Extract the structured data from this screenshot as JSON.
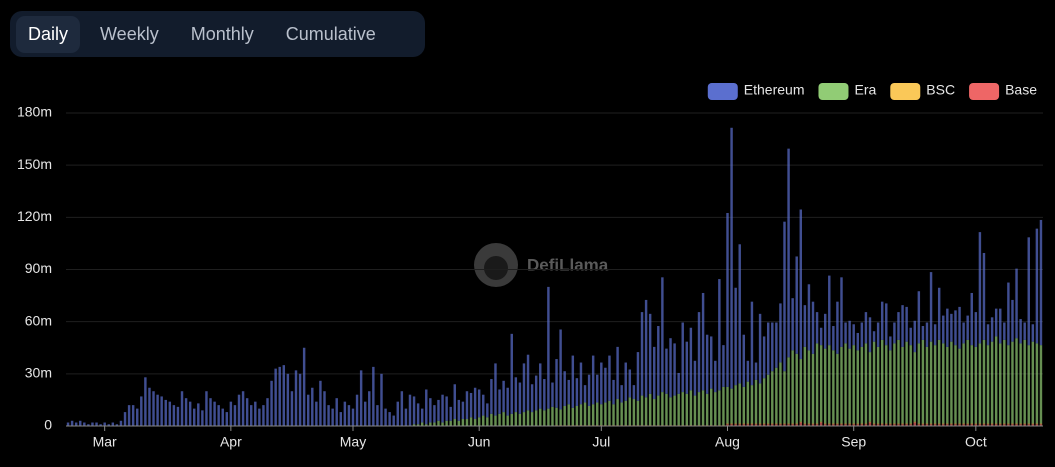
{
  "tabs": [
    "Daily",
    "Weekly",
    "Monthly",
    "Cumulative"
  ],
  "chart_data": {
    "type": "bar",
    "stacked": true,
    "watermark": "DefiLlama",
    "legend": "top-right",
    "grid": true,
    "ylim": [
      0,
      180
    ],
    "yticks": [
      0,
      {
        "value": 30,
        "label": "30m"
      },
      {
        "value": 60,
        "label": "60m"
      },
      {
        "value": 90,
        "label": "90m"
      },
      {
        "value": 120,
        "label": "120m"
      },
      {
        "value": 150,
        "label": "150m"
      },
      {
        "value": 180,
        "label": "180m"
      }
    ],
    "categories": [
      null,
      null,
      null,
      null,
      null,
      null,
      null,
      null,
      null,
      "Mar",
      null,
      null,
      null,
      null,
      null,
      null,
      null,
      null,
      null,
      null,
      null,
      null,
      null,
      null,
      null,
      null,
      null,
      null,
      null,
      null,
      null,
      null,
      null,
      null,
      null,
      null,
      null,
      null,
      null,
      null,
      "Apr",
      null,
      null,
      null,
      null,
      null,
      null,
      null,
      null,
      null,
      null,
      null,
      null,
      null,
      null,
      null,
      null,
      null,
      null,
      null,
      null,
      null,
      null,
      null,
      null,
      null,
      null,
      null,
      null,
      null,
      "May",
      null,
      null,
      null,
      null,
      null,
      null,
      null,
      null,
      null,
      null,
      null,
      null,
      null,
      null,
      null,
      null,
      null,
      null,
      null,
      null,
      null,
      null,
      null,
      null,
      null,
      null,
      null,
      null,
      null,
      null,
      "Jun",
      null,
      null,
      null,
      null,
      null,
      null,
      null,
      null,
      null,
      null,
      null,
      null,
      null,
      null,
      null,
      null,
      null,
      null,
      null,
      null,
      null,
      null,
      null,
      null,
      null,
      null,
      null,
      null,
      null,
      "Jul",
      null,
      null,
      null,
      null,
      null,
      null,
      null,
      null,
      null,
      null,
      null,
      null,
      null,
      null,
      null,
      null,
      null,
      null,
      null,
      null,
      null,
      null,
      null,
      null,
      null,
      null,
      null,
      null,
      null,
      null,
      "Aug",
      null,
      null,
      null,
      null,
      null,
      null,
      null,
      null,
      null,
      null,
      null,
      null,
      null,
      null,
      null,
      null,
      null,
      null,
      null,
      null,
      null,
      null,
      null,
      null,
      null,
      null,
      null,
      null,
      null,
      null,
      "Sep",
      null,
      null,
      null,
      null,
      null,
      null,
      null,
      null,
      null,
      null,
      null,
      null,
      null,
      null,
      null,
      null,
      null,
      null,
      null,
      null,
      null,
      null,
      null,
      null,
      null,
      null,
      null,
      null,
      null,
      "Oct",
      null,
      null,
      null,
      null,
      null,
      null,
      null,
      null,
      null,
      null,
      null,
      null,
      null,
      null,
      null,
      null
    ],
    "series": [
      {
        "name": "Ethereum",
        "color": "#5b6fcf",
        "values": [
          2,
          3,
          2,
          3,
          2,
          1,
          2,
          2,
          1,
          2,
          1,
          2,
          1,
          3,
          8,
          12,
          12,
          10,
          17,
          28,
          22,
          20,
          18,
          17,
          15,
          14,
          12,
          11,
          20,
          16,
          14,
          10,
          13,
          9,
          20,
          16,
          14,
          12,
          10,
          8,
          14,
          12,
          18,
          20,
          16,
          12,
          14,
          10,
          12,
          16,
          26,
          33,
          34,
          35,
          30,
          20,
          32,
          30,
          45,
          18,
          22,
          14,
          26,
          20,
          12,
          10,
          16,
          8,
          14,
          12,
          10,
          18,
          32,
          14,
          20,
          34,
          12,
          30,
          10,
          8,
          6,
          14,
          20,
          10,
          18,
          16,
          12,
          8,
          20,
          14,
          10,
          12,
          16,
          14,
          8,
          20,
          12,
          10,
          16,
          14,
          18,
          16,
          12,
          8,
          20,
          30,
          14,
          18,
          16,
          46,
          20,
          18,
          28,
          32,
          16,
          20,
          26,
          18,
          70,
          14,
          28,
          46,
          20,
          14,
          30,
          16,
          24,
          10,
          18,
          28,
          16,
          24,
          20,
          26,
          14,
          30,
          10,
          22,
          16,
          8,
          28,
          48,
          56,
          46,
          30,
          40,
          66,
          26,
          34,
          30,
          12,
          40,
          30,
          36,
          20,
          46,
          56,
          34,
          30,
          18,
          64,
          24,
          100,
          150,
          56,
          80,
          30,
          12,
          48,
          10,
          40,
          24,
          30,
          28,
          26,
          34,
          86,
          120,
          30,
          56,
          86,
          24,
          38,
          30,
          18,
          10,
          20,
          40,
          14,
          30,
          40,
          12,
          16,
          12,
          10,
          14,
          18,
          20,
          6,
          14,
          22,
          24,
          8,
          12,
          16,
          24,
          20,
          10,
          18,
          30,
          8,
          14,
          40,
          12,
          30,
          16,
          22,
          16,
          20,
          24,
          12,
          14,
          30,
          20,
          64,
          50,
          12,
          14,
          16,
          20,
          10,
          36,
          24,
          40,
          14,
          10,
          62,
          10,
          66,
          72
        ]
      },
      {
        "name": "Era",
        "color": "#91cc75",
        "values": [
          0,
          0,
          0,
          0,
          0,
          0,
          0,
          0,
          0,
          0,
          0,
          0,
          0,
          0,
          0,
          0,
          0,
          0,
          0,
          0,
          0,
          0,
          0,
          0,
          0,
          0,
          0,
          0,
          0,
          0,
          0,
          0,
          0,
          0,
          0,
          0,
          0,
          0,
          0,
          0,
          0,
          0,
          0,
          0,
          0,
          0,
          0,
          0,
          0,
          0,
          0,
          0,
          0,
          0,
          0,
          0,
          0,
          0,
          0,
          0,
          0,
          0,
          0,
          0,
          0,
          0,
          0,
          0,
          0,
          0,
          0,
          0,
          0,
          0,
          0,
          0,
          0,
          0,
          0,
          0,
          0,
          0,
          0,
          0,
          0,
          1,
          1,
          2,
          1,
          2,
          2,
          3,
          2,
          3,
          3,
          4,
          3,
          4,
          4,
          5,
          4,
          5,
          6,
          5,
          7,
          6,
          7,
          8,
          6,
          7,
          8,
          7,
          8,
          9,
          8,
          9,
          10,
          9,
          10,
          11,
          10,
          9,
          11,
          12,
          10,
          11,
          12,
          13,
          11,
          12,
          13,
          12,
          13,
          14,
          12,
          15,
          13,
          14,
          16,
          15,
          14,
          17,
          16,
          18,
          15,
          17,
          19,
          18,
          16,
          17,
          18,
          19,
          18,
          20,
          17,
          19,
          20,
          18,
          21,
          19,
          20,
          22,
          21,
          20,
          22,
          23,
          21,
          24,
          22,
          25,
          23,
          26,
          28,
          30,
          32,
          35,
          30,
          38,
          42,
          40,
          36,
          44,
          42,
          40,
          46,
          44,
          43,
          45,
          42,
          40,
          44,
          46,
          43,
          45,
          42,
          44,
          46,
          40,
          47,
          44,
          48,
          45,
          42,
          46,
          48,
          44,
          47,
          45,
          40,
          46,
          48,
          44,
          47,
          45,
          48,
          46,
          44,
          47,
          45,
          43,
          46,
          48,
          45,
          44,
          46,
          48,
          45,
          47,
          50,
          46,
          48,
          45,
          47,
          49,
          46,
          48,
          45,
          47,
          46,
          45
        ]
      },
      {
        "name": "BSC",
        "color": "#fac858",
        "values": [
          0,
          0,
          0,
          0,
          0,
          0,
          0,
          0,
          0,
          0,
          0,
          0,
          0,
          0,
          0,
          0,
          0,
          0,
          0,
          0,
          0,
          0,
          0,
          0,
          0,
          0,
          0,
          0,
          0,
          0,
          0,
          0,
          0,
          0,
          0,
          0,
          0,
          0,
          0,
          0,
          0,
          0,
          0,
          0,
          0,
          0,
          0,
          0,
          0,
          0,
          0,
          0,
          0,
          0,
          0,
          0,
          0,
          0,
          0,
          0,
          0,
          0,
          0,
          0,
          0,
          0,
          0,
          0,
          0,
          0,
          0,
          0,
          0,
          0,
          0,
          0,
          0,
          0,
          0,
          0,
          0,
          0,
          0,
          0,
          0,
          0,
          0,
          0,
          0,
          0,
          0,
          0,
          0,
          0,
          0,
          0,
          0,
          0,
          0,
          0,
          0,
          0,
          0,
          0,
          0,
          0,
          0,
          0,
          0,
          0,
          0,
          0,
          0,
          0,
          0,
          0,
          0,
          0,
          0,
          0,
          0.5,
          0.5,
          0.5,
          0.5,
          0.5,
          0.5,
          0.5,
          0.5,
          0.5,
          0.5,
          0.5,
          0.5,
          0.5,
          0.5,
          0.5,
          0.5,
          0.5,
          0.5,
          0.5,
          0.5,
          0.5,
          0.5,
          0.5,
          0.5,
          0.5,
          0.5,
          0.5,
          0.5,
          0.5,
          0.5,
          0.5,
          0.5,
          0.5,
          0.5,
          0.5,
          0.5,
          0.5,
          0.5,
          0.5,
          0.5,
          0.5,
          0.5,
          0.5,
          0.5,
          0.5,
          0.5,
          0.5,
          0.5,
          0.5,
          0.5,
          0.5,
          0.5,
          0.5,
          0.5,
          0.5,
          0.5,
          0.5,
          0.5,
          0.5,
          0.5,
          0.5,
          0.5,
          0.5,
          0.5,
          0.5,
          0.5,
          0.5,
          0.5,
          0.5,
          0.5,
          0.5,
          0.5,
          0.5,
          0.5,
          0.5,
          0.5,
          0.5,
          0.5,
          0.5,
          0.5,
          0.5,
          0.5,
          0.5,
          0.5,
          0.5,
          0.5,
          0.5,
          0.5,
          0.5,
          0.5,
          0.5,
          0.5,
          0.5,
          0.5,
          0.5,
          0.5,
          0.5,
          0.5,
          0.5,
          0.5,
          0.5,
          0.5,
          0.5,
          0.5,
          0.5,
          0.5,
          0.5,
          0.5,
          0.5,
          0.5,
          0.5,
          0.5,
          0.5,
          0.5,
          0.5,
          0.5,
          0.5,
          0.5,
          0.5,
          0.5
        ]
      },
      {
        "name": "Base",
        "color": "#ee6666",
        "values": [
          0,
          0,
          0,
          0,
          0,
          0,
          0,
          0,
          0,
          0,
          0,
          0,
          0,
          0,
          0,
          0,
          0,
          0,
          0,
          0,
          0,
          0,
          0,
          0,
          0,
          0,
          0,
          0,
          0,
          0,
          0,
          0,
          0,
          0,
          0,
          0,
          0,
          0,
          0,
          0,
          0,
          0,
          0,
          0,
          0,
          0,
          0,
          0,
          0,
          0,
          0,
          0,
          0,
          0,
          0,
          0,
          0,
          0,
          0,
          0,
          0,
          0,
          0,
          0,
          0,
          0,
          0,
          0,
          0,
          0,
          0,
          0,
          0,
          0,
          0,
          0,
          0,
          0,
          0,
          0,
          0,
          0,
          0,
          0,
          0,
          0,
          0,
          0,
          0,
          0,
          0,
          0,
          0,
          0,
          0,
          0,
          0,
          0,
          0,
          0,
          0,
          0,
          0,
          0,
          0,
          0,
          0,
          0,
          0,
          0,
          0,
          0,
          0,
          0,
          0,
          0,
          0,
          0,
          0,
          0,
          0,
          0,
          0,
          0,
          0,
          0,
          0,
          0,
          0,
          0,
          0,
          0,
          0,
          0,
          0,
          0,
          0,
          0,
          0,
          0,
          0,
          0,
          0,
          0,
          0,
          0,
          0,
          0,
          0,
          0,
          0,
          0,
          0,
          0,
          0,
          0,
          0,
          0,
          0,
          0,
          0,
          0,
          1,
          1,
          1,
          1,
          1,
          1,
          1,
          1,
          1,
          1,
          1,
          1,
          1,
          1,
          1,
          1,
          1,
          1,
          2,
          1,
          1,
          1,
          1,
          2,
          1,
          1,
          1,
          1,
          1,
          1,
          1,
          1,
          1,
          1,
          1,
          2,
          1,
          1,
          1,
          1,
          1,
          1,
          1,
          1,
          1,
          1,
          2,
          1,
          1,
          1,
          1,
          1,
          1,
          1,
          1,
          1,
          1,
          1,
          1,
          1,
          1,
          1,
          1,
          1,
          1,
          1,
          1,
          1,
          1,
          1,
          1,
          1,
          1,
          1,
          1,
          1,
          1,
          1
        ]
      }
    ]
  }
}
